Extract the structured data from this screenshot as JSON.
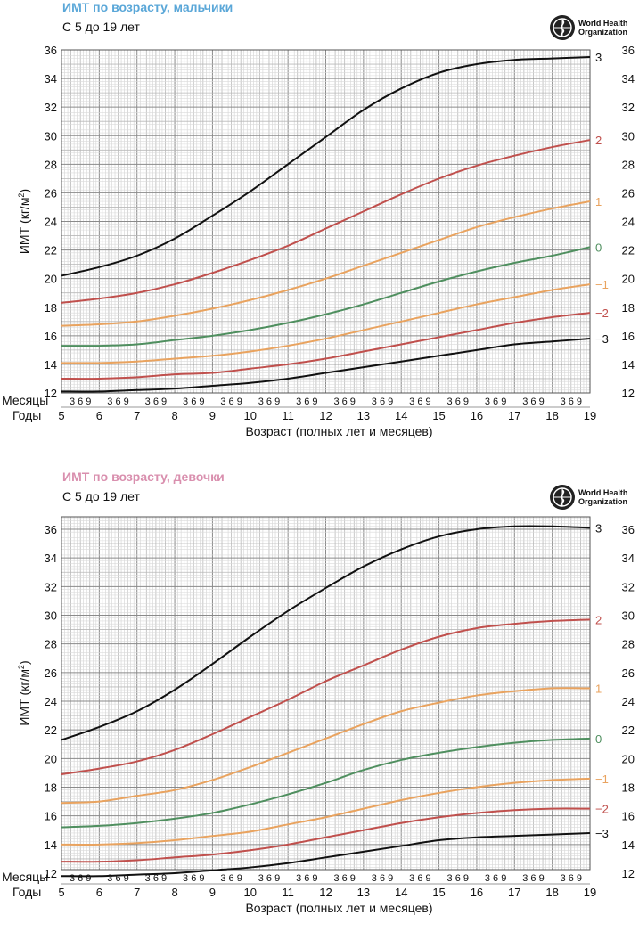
{
  "chart_data": [
    {
      "type": "line",
      "title": "ИМТ по возрасту, мальчики",
      "subtitle": "С 5 до 19 лет",
      "title_color": "#5aa7d8",
      "logo_text": [
        "World Health",
        "Organization"
      ],
      "ylabel_main": "ИМТ (кг/м",
      "ylabel_sup": "2",
      "ylabel_tail": ")",
      "xlabel": "Возраст (полных лет и месяцев)",
      "months_label": "Месяцы",
      "years_label": "Годы",
      "month_ticks": "3 6 9",
      "ylim": [
        12,
        36
      ],
      "xlim": [
        5,
        19
      ],
      "yticks": [
        12,
        14,
        16,
        18,
        20,
        22,
        24,
        26,
        28,
        30,
        32,
        34,
        36
      ],
      "xticks": [
        5,
        6,
        7,
        8,
        9,
        10,
        11,
        12,
        13,
        14,
        15,
        16,
        17,
        18,
        19
      ],
      "x": [
        5,
        6,
        7,
        8,
        9,
        10,
        11,
        12,
        13,
        14,
        15,
        16,
        17,
        18,
        19
      ],
      "series": [
        {
          "name": "3",
          "color": "#111111",
          "values": [
            20.2,
            20.8,
            21.6,
            22.8,
            24.4,
            26.1,
            28.0,
            29.9,
            31.8,
            33.3,
            34.4,
            35.0,
            35.3,
            35.4,
            35.5
          ]
        },
        {
          "name": "2",
          "color": "#c0504d",
          "values": [
            18.3,
            18.6,
            19.0,
            19.6,
            20.4,
            21.3,
            22.3,
            23.5,
            24.7,
            25.9,
            27.0,
            27.9,
            28.6,
            29.2,
            29.7
          ]
        },
        {
          "name": "1",
          "color": "#e9a35f",
          "values": [
            16.7,
            16.8,
            17.0,
            17.4,
            17.9,
            18.5,
            19.2,
            20.0,
            20.9,
            21.8,
            22.7,
            23.6,
            24.3,
            24.9,
            25.4
          ]
        },
        {
          "name": "0",
          "color": "#4f8f5f",
          "values": [
            15.3,
            15.3,
            15.4,
            15.7,
            16.0,
            16.4,
            16.9,
            17.5,
            18.2,
            19.0,
            19.8,
            20.5,
            21.1,
            21.6,
            22.2
          ]
        },
        {
          "name": "−1",
          "color": "#e9a35f",
          "values": [
            14.1,
            14.1,
            14.2,
            14.4,
            14.6,
            14.9,
            15.3,
            15.8,
            16.4,
            17.0,
            17.6,
            18.2,
            18.7,
            19.2,
            19.6
          ]
        },
        {
          "name": "−2",
          "color": "#c0504d",
          "values": [
            13.0,
            13.0,
            13.1,
            13.3,
            13.4,
            13.7,
            14.0,
            14.4,
            14.9,
            15.4,
            15.9,
            16.4,
            16.9,
            17.3,
            17.6
          ]
        },
        {
          "name": "−3",
          "color": "#111111",
          "values": [
            12.1,
            12.1,
            12.2,
            12.3,
            12.5,
            12.7,
            13.0,
            13.4,
            13.8,
            14.2,
            14.6,
            15.0,
            15.4,
            15.6,
            15.8
          ]
        }
      ]
    },
    {
      "type": "line",
      "title": "ИМТ по возрасту, девочки",
      "subtitle": "С 5 до 19 лет",
      "title_color": "#d98fae",
      "logo_text": [
        "World Health",
        "Organization"
      ],
      "ylabel_main": "ИМТ (кг/м",
      "ylabel_sup": "2",
      "ylabel_tail": ")",
      "xlabel": "Возраст (полных лет и месяцев)",
      "months_label": "Месяцы",
      "years_label": "Годы",
      "month_ticks": "3 6 9",
      "ylim": [
        11,
        37
      ],
      "xlim": [
        5,
        19
      ],
      "yticks": [
        12,
        14,
        16,
        18,
        20,
        22,
        24,
        26,
        28,
        30,
        32,
        34,
        36
      ],
      "xticks": [
        5,
        6,
        7,
        8,
        9,
        10,
        11,
        12,
        13,
        14,
        15,
        16,
        17,
        18,
        19
      ],
      "x": [
        5,
        6,
        7,
        8,
        9,
        10,
        11,
        12,
        13,
        14,
        15,
        16,
        17,
        18,
        19
      ],
      "series": [
        {
          "name": "3",
          "color": "#111111",
          "values": [
            21.3,
            22.2,
            23.3,
            24.8,
            26.6,
            28.5,
            30.3,
            31.9,
            33.4,
            34.6,
            35.5,
            36.0,
            36.2,
            36.2,
            36.1
          ]
        },
        {
          "name": "2",
          "color": "#c0504d",
          "values": [
            18.9,
            19.3,
            19.8,
            20.6,
            21.7,
            22.9,
            24.1,
            25.4,
            26.5,
            27.6,
            28.5,
            29.1,
            29.4,
            29.6,
            29.7
          ]
        },
        {
          "name": "1",
          "color": "#e9a35f",
          "values": [
            16.9,
            17.0,
            17.4,
            17.8,
            18.5,
            19.4,
            20.4,
            21.4,
            22.4,
            23.3,
            23.9,
            24.4,
            24.7,
            24.9,
            24.9
          ]
        },
        {
          "name": "0",
          "color": "#4f8f5f",
          "values": [
            15.2,
            15.3,
            15.5,
            15.8,
            16.2,
            16.8,
            17.5,
            18.3,
            19.2,
            19.9,
            20.4,
            20.8,
            21.1,
            21.3,
            21.4
          ]
        },
        {
          "name": "−1",
          "color": "#e9a35f",
          "values": [
            14.0,
            14.0,
            14.1,
            14.3,
            14.6,
            14.9,
            15.4,
            15.9,
            16.5,
            17.1,
            17.6,
            18.0,
            18.3,
            18.5,
            18.6
          ]
        },
        {
          "name": "−2",
          "color": "#c0504d",
          "values": [
            12.8,
            12.8,
            12.9,
            13.1,
            13.3,
            13.6,
            14.0,
            14.5,
            15.0,
            15.5,
            15.9,
            16.2,
            16.4,
            16.5,
            16.5
          ]
        },
        {
          "name": "−3",
          "color": "#111111",
          "values": [
            11.8,
            11.8,
            11.9,
            12.0,
            12.2,
            12.4,
            12.7,
            13.1,
            13.5,
            13.9,
            14.3,
            14.5,
            14.6,
            14.7,
            14.8
          ]
        }
      ]
    }
  ]
}
